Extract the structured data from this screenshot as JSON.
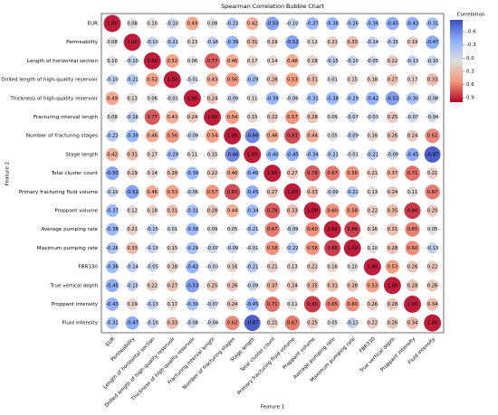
{
  "chart_data": {
    "type": "bubble",
    "title": "Spearman Correlation Bubble Chart",
    "xlabel": "Feature 1",
    "ylabel": "Feature 2",
    "categories": [
      "EUR",
      "Permeability",
      "Length of horizontal section",
      "Drilled length of high-quality reservoir",
      "Thickness of high-quality reservoir",
      "Fracturing interval length",
      "Number of fracturing stages",
      "Stage length",
      "Total cluster count",
      "Primary fracturing fluid volume",
      "Proppant volume",
      "Average pumping rate",
      "Maximum pumping rate",
      "FBR330",
      "True vertical depth",
      "Proppant intensity",
      "Fluid intensity"
    ],
    "values": [
      [
        1.0,
        0.08,
        0.1,
        -0.1,
        0.49,
        0.08,
        -0.23,
        0.42,
        -0.5,
        -0.1,
        -0.37,
        -0.38,
        -0.26,
        -0.36,
        -0.45,
        -0.43,
        -0.31
      ],
      [
        0.08,
        1.0,
        -0.1,
        -0.21,
        0.13,
        -0.16,
        -0.39,
        0.31,
        0.19,
        -0.52,
        0.12,
        0.21,
        0.33,
        -0.14,
        -0.15,
        0.19,
        -0.47
      ],
      [
        0.1,
        -0.1,
        1.0,
        0.52,
        0.06,
        0.77,
        0.46,
        0.17,
        0.14,
        0.46,
        0.18,
        -0.15,
        -0.1,
        -0.05,
        0.22,
        -0.13,
        -0.1
      ],
      [
        -0.1,
        -0.21,
        0.52,
        1.0,
        -0.01,
        0.43,
        0.56,
        -0.29,
        0.28,
        0.53,
        0.31,
        0.01,
        0.15,
        0.18,
        0.27,
        0.17,
        0.33
      ],
      [
        0.49,
        0.13,
        0.06,
        -0.01,
        1.0,
        0.24,
        -0.09,
        0.11,
        -0.39,
        -0.06,
        -0.31,
        -0.38,
        -0.29,
        -0.42,
        -0.53,
        -0.3,
        -0.08
      ],
      [
        0.08,
        -0.16,
        0.77,
        0.43,
        0.24,
        1.0,
        0.54,
        0.15,
        0.22,
        0.57,
        0.28,
        0.09,
        -0.07,
        -0.03,
        0.25,
        -0.07,
        -0.04
      ],
      [
        -0.23,
        -0.39,
        0.46,
        0.56,
        -0.09,
        0.54,
        1.0,
        -0.66,
        0.46,
        0.83,
        0.44,
        0.05,
        -0.09,
        0.16,
        0.26,
        0.24,
        0.62
      ],
      [
        0.42,
        0.31,
        0.17,
        -0.29,
        0.11,
        0.15,
        -0.66,
        1.0,
        -0.4,
        -0.45,
        -0.34,
        -0.21,
        -0.01,
        -0.21,
        -0.09,
        -0.45,
        -0.87
      ],
      [
        -0.5,
        0.19,
        0.14,
        0.28,
        -0.39,
        0.22,
        0.46,
        -0.4,
        1.0,
        0.27,
        0.78,
        0.67,
        0.58,
        0.21,
        0.37,
        0.71,
        0.21
      ],
      [
        -0.1,
        -0.52,
        0.46,
        0.53,
        -0.06,
        0.57,
        0.83,
        -0.45,
        0.27,
        1.0,
        0.33,
        -0.09,
        -0.22,
        0.13,
        0.24,
        0.11,
        0.67
      ],
      [
        -0.37,
        0.12,
        0.18,
        0.31,
        -0.31,
        0.28,
        0.44,
        -0.34,
        0.78,
        0.33,
        1.0,
        0.6,
        0.58,
        0.22,
        0.35,
        0.9,
        0.25
      ],
      [
        -0.38,
        0.21,
        -0.15,
        0.01,
        -0.38,
        0.09,
        0.05,
        -0.21,
        0.67,
        -0.09,
        0.6,
        1.0,
        0.88,
        0.16,
        0.31,
        0.65,
        0.05
      ],
      [
        -0.26,
        0.33,
        -0.1,
        0.15,
        -0.29,
        -0.07,
        -0.09,
        -0.01,
        0.58,
        -0.22,
        0.58,
        0.88,
        1.0,
        0.1,
        0.28,
        0.6,
        -0.13
      ],
      [
        -0.36,
        -0.14,
        -0.05,
        0.18,
        -0.42,
        -0.03,
        0.16,
        -0.21,
        0.21,
        0.13,
        0.22,
        0.16,
        0.1,
        1.0,
        0.53,
        0.26,
        0.22
      ],
      [
        -0.45,
        -0.15,
        0.22,
        0.27,
        -0.53,
        0.25,
        0.26,
        -0.09,
        0.37,
        0.24,
        0.35,
        0.31,
        0.28,
        0.53,
        1.0,
        0.28,
        0.26
      ],
      [
        -0.43,
        0.19,
        -0.13,
        0.17,
        -0.3,
        -0.07,
        0.24,
        -0.45,
        0.71,
        0.11,
        0.9,
        0.65,
        0.6,
        0.26,
        0.28,
        1.0,
        0.34
      ],
      [
        -0.31,
        -0.47,
        -0.1,
        0.33,
        -0.08,
        -0.04,
        0.62,
        -0.87,
        0.21,
        0.67,
        0.25,
        0.05,
        -0.13,
        0.22,
        0.26,
        0.34,
        1.0
      ]
    ],
    "value_labels": [
      [
        "1.00",
        "0.08",
        "0.10",
        "-0.10",
        "0.49",
        "0.08",
        "-0.23",
        "0.42",
        "-0.50",
        "-0.10",
        "-0.37",
        "-0.38",
        "-0.26",
        "-0.36",
        "-0.45",
        "-0.43",
        "-0.31"
      ],
      [
        "0.08",
        "1.00",
        "-0.10",
        "-0.21",
        "0.13",
        "-0.16",
        "-0.39",
        "0.31",
        "0.19",
        "-0.52",
        "0.12",
        "0.21",
        "0.33",
        "-0.14",
        "-0.15",
        "0.19",
        "-0.47"
      ],
      [
        "0.10",
        "-0.10",
        "1.00",
        "0.52",
        "0.06",
        "0.77",
        "0.46",
        "0.17",
        "0.14",
        "0.46",
        "0.18",
        "-0.15",
        "-0.10",
        "-0.05",
        "0.22",
        "-0.13",
        "-0.10"
      ],
      [
        "-0.10",
        "-0.21",
        "0.52",
        "1.00",
        "-0.01",
        "0.43",
        "0.56",
        "-0.29",
        "0.28",
        "0.53",
        "0.31",
        "0.01",
        "0.15",
        "0.18",
        "0.27",
        "0.17",
        "0.33"
      ],
      [
        "0.49",
        "0.13",
        "0.06",
        "-0.01",
        "1.00",
        "0.24",
        "-0.09",
        "0.11",
        "-0.39",
        "-0.06",
        "-0.31",
        "-0.38",
        "-0.29",
        "-0.42",
        "-0.53",
        "-0.30",
        "-0.08"
      ],
      [
        "0.08",
        "-0.16",
        "0.77",
        "0.43",
        "0.24",
        "1.00",
        "0.54",
        "0.15",
        "0.22",
        "0.57",
        "0.28",
        "0.09",
        "-0.07",
        "-0.03",
        "0.25",
        "-0.07",
        "-0.04"
      ],
      [
        "-0.23",
        "-0.39",
        "0.46",
        "0.56",
        "-0.09",
        "0.54",
        "1.00",
        "-0.66",
        "0.46",
        "0.83",
        "0.44",
        "0.05",
        "-0.09",
        "0.16",
        "0.26",
        "0.24",
        "0.62"
      ],
      [
        "0.42",
        "0.31",
        "0.17",
        "-0.29",
        "0.11",
        "0.15",
        "-0.66",
        "1.00",
        "-0.40",
        "-0.45",
        "-0.34",
        "-0.21",
        "-0.01",
        "-0.21",
        "-0.09",
        "-0.45",
        "-0.87"
      ],
      [
        "-0.50",
        "0.19",
        "0.14",
        "0.28",
        "-0.39",
        "0.22",
        "0.46",
        "-0.40",
        "1.00",
        "0.27",
        "0.78",
        "0.67",
        "0.58",
        "0.21",
        "0.37",
        "0.71",
        "0.21"
      ],
      [
        "-0.10",
        "-0.52",
        "0.46",
        "0.53",
        "-0.06",
        "0.57",
        "0.83",
        "-0.45",
        "0.27",
        "1.00",
        "0.33",
        "-0.09",
        "-0.22",
        "0.13",
        "0.24",
        "0.11",
        "0.67"
      ],
      [
        "-0.37",
        "0.12",
        "0.18",
        "0.31",
        "-0.31",
        "0.28",
        "0.44",
        "-0.34",
        "0.78",
        "0.33",
        "1.00",
        "0.60",
        "0.58",
        "0.22",
        "0.35",
        "0.90",
        "0.25"
      ],
      [
        "-0.38",
        "0.21",
        "-0.15",
        "0.01",
        "-0.38",
        "0.09",
        "0.05",
        "-0.21",
        "0.67",
        "-0.09",
        "0.60",
        "1.00",
        "0.88",
        "0.16",
        "0.31",
        "0.65",
        "0.05"
      ],
      [
        "-0.26",
        "0.33",
        "-0.10",
        "0.15",
        "-0.29",
        "-0.07",
        "-0.09",
        "-0.01",
        "0.58",
        "-0.22",
        "0.58",
        "0.88",
        "1.00",
        "0.10",
        "0.28",
        "0.60",
        "-0.13"
      ],
      [
        "-0.36",
        "-0.14",
        "-0.05",
        "0.18",
        "-0.42",
        "-0.03",
        "0.16",
        "-0.21",
        "0.21",
        "0.13",
        "0.22",
        "0.16",
        "0.10",
        "1.00",
        "0.53",
        "0.26",
        "0.22"
      ],
      [
        "-0.45",
        "-0.15",
        "0.22",
        "0.27",
        "-0.53",
        "0.25",
        "0.26",
        "-0.09",
        "0.37",
        "0.24",
        "0.35",
        "0.31",
        "0.28",
        "0.53",
        "1.00",
        "0.28",
        "0.26"
      ],
      [
        "-0.43",
        "0.19",
        "-0.13",
        "0.17",
        "-0.30",
        "-0.07",
        "0.24",
        "-0.45",
        "0.71",
        "0.11",
        "0.90",
        "0.65",
        "0.60",
        "0.26",
        "0.28",
        "1.00",
        "0.34"
      ],
      [
        "-0.31",
        "-0.47",
        "-0.10",
        "0.33",
        "-0.08",
        "-0.04",
        "0.62",
        "-0.87",
        "0.21",
        "0.67",
        "0.25",
        "0.05",
        "-0.13",
        "0.22",
        "0.26",
        "0.34",
        "1.00"
      ]
    ],
    "colorbar": {
      "label": "Correlation",
      "lim": [
        -0.87,
        1.0
      ],
      "ticks": [
        -0.6,
        -0.3,
        {
          "value": 0,
          "label": "0.0"
        },
        0.3,
        0.6,
        0.9
      ]
    },
    "colormap": [
      "#3b4cc0",
      "#8db0fe",
      "#dddddd",
      "#f4987a",
      "#b40426"
    ],
    "grid": true
  }
}
